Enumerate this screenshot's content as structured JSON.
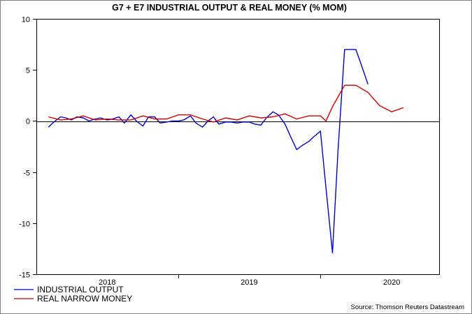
{
  "chart_data": {
    "type": "line",
    "title": "G7 + E7 INDUSTRIAL OUTPUT & REAL MONEY (% MOM)",
    "source": "Source: Thomson Reuters Datastream",
    "ylim": [
      -15,
      10
    ],
    "yticks": [
      10,
      5,
      0,
      -5,
      -10,
      -15
    ],
    "xlim": [
      "2017-12",
      "2020-10"
    ],
    "year_labels": [
      {
        "label": "2018",
        "center": "2018-06"
      },
      {
        "label": "2019",
        "center": "2019-06"
      },
      {
        "label": "2020",
        "center": "2020-06"
      }
    ],
    "year_boundaries": [
      "2018-12",
      "2019-12"
    ],
    "legend": {
      "position": "bottom-left"
    },
    "grid": false,
    "series": [
      {
        "name": "INDUSTRIAL OUTPUT",
        "color": "#0000cc",
        "points": [
          [
            "2018-01-01",
            -0.6
          ],
          [
            "2018-01-15",
            -0.1
          ],
          [
            "2018-02-01",
            0.4
          ],
          [
            "2018-02-15",
            0.3
          ],
          [
            "2018-03-01",
            0.1
          ],
          [
            "2018-03-15",
            0.4
          ],
          [
            "2018-04-01",
            0.3
          ],
          [
            "2018-04-15",
            0.0
          ],
          [
            "2018-05-01",
            0.2
          ],
          [
            "2018-05-15",
            0.3
          ],
          [
            "2018-06-01",
            0.1
          ],
          [
            "2018-06-15",
            0.2
          ],
          [
            "2018-07-01",
            0.4
          ],
          [
            "2018-07-15",
            -0.2
          ],
          [
            "2018-08-01",
            0.6
          ],
          [
            "2018-08-15",
            0.0
          ],
          [
            "2018-09-01",
            -0.5
          ],
          [
            "2018-09-15",
            0.4
          ],
          [
            "2018-10-01",
            0.4
          ],
          [
            "2018-10-15",
            -0.2
          ],
          [
            "2018-11-01",
            -0.1
          ],
          [
            "2018-11-15",
            0.0
          ],
          [
            "2018-12-01",
            0.0
          ],
          [
            "2018-12-15",
            0.1
          ],
          [
            "2019-01-01",
            0.5
          ],
          [
            "2019-01-15",
            -0.2
          ],
          [
            "2019-02-01",
            -0.6
          ],
          [
            "2019-02-15",
            0.0
          ],
          [
            "2019-03-01",
            0.4
          ],
          [
            "2019-03-15",
            -0.3
          ],
          [
            "2019-04-01",
            -0.1
          ],
          [
            "2019-04-15",
            -0.1
          ],
          [
            "2019-05-01",
            -0.2
          ],
          [
            "2019-05-15",
            -0.1
          ],
          [
            "2019-06-01",
            -0.1
          ],
          [
            "2019-06-15",
            -0.3
          ],
          [
            "2019-07-01",
            -0.4
          ],
          [
            "2019-07-15",
            0.3
          ],
          [
            "2019-08-01",
            0.9
          ],
          [
            "2019-08-15",
            0.6
          ],
          [
            "2019-09-01",
            -0.3
          ],
          [
            "2019-09-15",
            -1.5
          ],
          [
            "2019-10-01",
            -2.8
          ],
          [
            "2019-10-15",
            -2.4
          ],
          [
            "2019-11-01",
            -2.0
          ],
          [
            "2019-11-15",
            -1.5
          ],
          [
            "2019-12-01",
            -1.0
          ],
          [
            "2019-12-15",
            -6.5
          ],
          [
            "2020-01-01",
            -12.9
          ],
          [
            "2020-01-15",
            -3.0
          ],
          [
            "2020-02-01",
            7.0
          ],
          [
            "2020-02-15",
            7.0
          ],
          [
            "2020-03-01",
            7.0
          ],
          [
            "2020-03-15",
            5.5
          ],
          [
            "2020-04-01",
            3.6
          ]
        ]
      },
      {
        "name": "REAL NARROW MONEY",
        "color": "#cc0000",
        "points": [
          [
            "2018-01-01",
            0.4
          ],
          [
            "2018-02-01",
            0.1
          ],
          [
            "2018-03-01",
            0.2
          ],
          [
            "2018-04-01",
            0.5
          ],
          [
            "2018-05-01",
            0.1
          ],
          [
            "2018-06-01",
            0.2
          ],
          [
            "2018-07-01",
            0.1
          ],
          [
            "2018-08-01",
            0.1
          ],
          [
            "2018-09-01",
            0.5
          ],
          [
            "2018-10-01",
            0.2
          ],
          [
            "2018-11-01",
            0.2
          ],
          [
            "2018-12-01",
            0.6
          ],
          [
            "2019-01-01",
            0.6
          ],
          [
            "2019-02-01",
            0.2
          ],
          [
            "2019-03-01",
            -0.1
          ],
          [
            "2019-04-01",
            0.3
          ],
          [
            "2019-05-01",
            0.1
          ],
          [
            "2019-06-01",
            0.5
          ],
          [
            "2019-07-01",
            0.3
          ],
          [
            "2019-08-01",
            0.4
          ],
          [
            "2019-09-01",
            0.7
          ],
          [
            "2019-10-01",
            0.2
          ],
          [
            "2019-11-01",
            0.5
          ],
          [
            "2019-12-01",
            0.5
          ],
          [
            "2019-12-15",
            0.0
          ],
          [
            "2020-01-01",
            1.4
          ],
          [
            "2020-02-01",
            3.5
          ],
          [
            "2020-03-01",
            3.5
          ],
          [
            "2020-04-01",
            2.8
          ],
          [
            "2020-05-01",
            1.5
          ],
          [
            "2020-06-01",
            0.9
          ],
          [
            "2020-07-01",
            1.3
          ]
        ]
      }
    ]
  }
}
